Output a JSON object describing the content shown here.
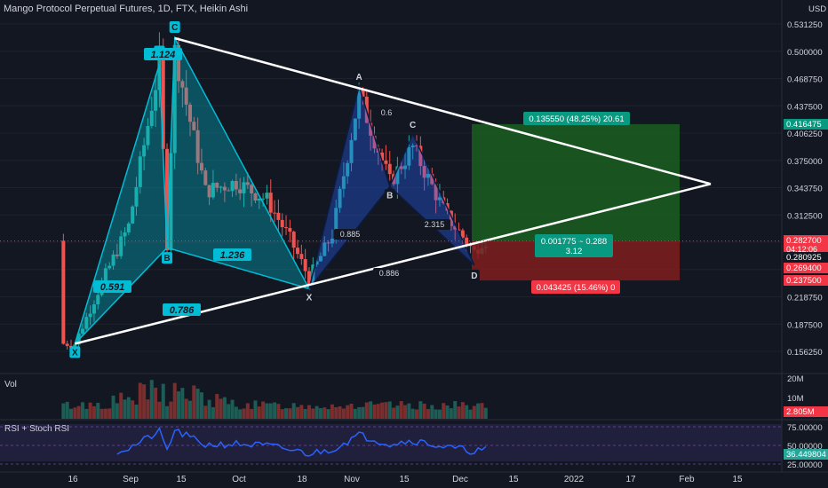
{
  "header": {
    "title": "Mango Protocol Perpetual Futures, 1D, FTX, Heikin Ashi",
    "currency": "USD"
  },
  "price_axis": {
    "ticks": [
      "0.531250",
      "0.500000",
      "0.468750",
      "0.437500",
      "0.406250",
      "0.375000",
      "0.343750",
      "0.312500",
      "0.281250",
      "0.250000",
      "0.218750",
      "0.187500",
      "0.156250"
    ],
    "badges": [
      {
        "text": "0.416475",
        "color": "#089981"
      },
      {
        "text": "0.282700",
        "color": "#f23645",
        "sub": "04:12:06"
      },
      {
        "text": "0.280925",
        "color": "#131722"
      },
      {
        "text": "0.269400",
        "color": "#f23645"
      },
      {
        "text": "0.237500",
        "color": "#f23645"
      }
    ]
  },
  "time_axis": {
    "labels": [
      "16",
      "Sep",
      "15",
      "Oct",
      "18",
      "Nov",
      "15",
      "Dec",
      "15",
      "2022",
      "17",
      "Feb",
      "15"
    ]
  },
  "volume_pane": {
    "label": "Vol",
    "ticks": [
      "20M",
      "10M"
    ],
    "badge": "2.805M"
  },
  "rsi_pane": {
    "label": "RSI + Stoch RSI",
    "ticks": [
      "75.00000",
      "50.00000",
      "25.00000"
    ],
    "badge": "36.449804"
  },
  "position": {
    "target_label": "0.135550 (48.25%) 20.61",
    "entry_label_line1": "0.001775 ~ 0.288",
    "entry_label_line2": "3.12",
    "stop_label": "0.043425 (15.46%) 0",
    "target_color": "#1b5e20",
    "stop_color": "#7f1d1d"
  },
  "patterns": {
    "pattern1": {
      "points": [
        "X",
        "A",
        "B",
        "C"
      ],
      "ratios": [
        "0.591",
        "1.124",
        "1.236",
        "0.786"
      ]
    },
    "pattern2": {
      "points": [
        "X",
        "A",
        "B",
        "C",
        "D"
      ],
      "ratios": [
        "0.6",
        "0.885",
        "2.315",
        "0.886"
      ]
    }
  },
  "colors": {
    "up": "#26a69a",
    "down": "#ef5350",
    "pattern_fill": "#2962ff",
    "pattern_line": "#00bcd4",
    "trendline": "#ffffff"
  },
  "chart_data": {
    "type": "candlestick",
    "title": "Mango Protocol Perpetual Futures, 1D, FTX, Heikin Ashi",
    "ylim": [
      0.14,
      0.54
    ],
    "annotations": {
      "pattern1": [
        {
          "label": "X",
          "x": "2021-08-17",
          "y": 0.165
        },
        {
          "label": "A",
          "x": "2021-09-08",
          "y": 0.485
        },
        {
          "label": "B",
          "x": "2021-09-10",
          "y": 0.275
        },
        {
          "label": "C",
          "x": "2021-09-12",
          "y": 0.515
        },
        {
          "label": "X",
          "x": "2021-10-17",
          "y": 0.228
        }
      ],
      "pattern2": [
        {
          "label": "X",
          "x": "2021-10-17",
          "y": 0.228
        },
        {
          "label": "A",
          "x": "2021-10-30",
          "y": 0.46
        },
        {
          "label": "B",
          "x": "2021-11-07",
          "y": 0.345
        },
        {
          "label": "C",
          "x": "2021-11-13",
          "y": 0.405
        },
        {
          "label": "D",
          "x": "2021-11-29",
          "y": 0.255
        }
      ]
    },
    "trendlines": [
      {
        "from": {
          "x": "2021-08-17",
          "y": 0.165
        },
        "to": {
          "x": "2022-02-15",
          "y": 0.348
        }
      },
      {
        "from": {
          "x": "2021-09-12",
          "y": 0.515
        },
        "to": {
          "x": "2022-02-15",
          "y": 0.348
        }
      }
    ],
    "position": {
      "entry": 0.2827,
      "target": 0.416475,
      "stop": 0.2375
    },
    "series": [
      {
        "name": "price",
        "x": [
          "2021-08-17",
          "2021-08-24",
          "2021-08-31",
          "2021-09-08",
          "2021-09-10",
          "2021-09-12",
          "2021-09-20",
          "2021-09-28",
          "2021-10-06",
          "2021-10-12",
          "2021-10-17",
          "2021-10-23",
          "2021-10-30",
          "2021-11-07",
          "2021-11-13",
          "2021-11-22",
          "2021-11-29",
          "2021-12-01"
        ],
        "values": [
          0.165,
          0.235,
          0.3,
          0.485,
          0.28,
          0.5,
          0.34,
          0.35,
          0.33,
          0.285,
          0.24,
          0.29,
          0.45,
          0.35,
          0.39,
          0.31,
          0.27,
          0.283
        ]
      }
    ]
  }
}
